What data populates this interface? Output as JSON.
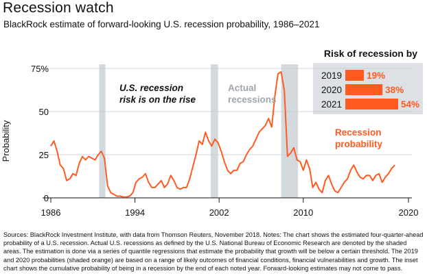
{
  "title": "Recession watch",
  "subtitle": "BlackRock estimate of forward-looking U.S. recession probability, 1986–2021",
  "footnote": "Sources: BlackRock Investment Institute, with data from Thomson Reuters, November 2018. Notes: The chart shows the estimated four-quarter-ahead probability of a U.S. recession.  Actual U.S. recessions as defined by the U.S. National Bureau of Economic Research are denoted by the shaded areas. The estimation is done via a series of quantile regressions that estimate the probability that growth will be below a certain threshold. The 2019 and 2020 probabilities (shaded orange) are based on a range of likely outcomes of financial conditions, financial vulnerabilities and growth. The inset chart shows the cumulative probability of being in a recession by the end of each noted year. Forward-looking estimates may not come to pass.",
  "annotations": {
    "risk_line1": "U.S. recession",
    "risk_line2": "risk is on the rise",
    "actual_line1": "Actual",
    "actual_line2": "recessions",
    "series_line1": "Recession",
    "series_line2": "probability"
  },
  "colors": {
    "series": "#ff5a1f",
    "recession": "#d4d9de",
    "inset_bg": "#dde1e5",
    "axis": "#111111"
  },
  "chart_data": [
    {
      "type": "line",
      "ylabel": "Probability",
      "ylim": [
        0,
        80
      ],
      "xlim": [
        1986,
        2021
      ],
      "x_ticks": [
        1986,
        1994,
        2002,
        2010,
        2020
      ],
      "x_tick_labels": [
        "1986",
        "1994",
        "2002",
        "2010",
        "2020"
      ],
      "y_ticks": [
        0,
        25,
        50,
        75
      ],
      "y_tick_labels": [
        "0",
        "25",
        "50",
        "75%"
      ],
      "recessions": [
        [
          1990.6,
          1991.2
        ],
        [
          2001.2,
          2001.9
        ],
        [
          2007.9,
          2009.5
        ]
      ],
      "series": [
        {
          "name": "Recession probability",
          "x": [
            1986.0,
            1986.3,
            1986.6,
            1986.9,
            1987.2,
            1987.5,
            1987.8,
            1988.1,
            1988.4,
            1988.7,
            1989.0,
            1989.3,
            1989.6,
            1989.9,
            1990.2,
            1990.5,
            1990.8,
            1991.1,
            1991.4,
            1991.7,
            1992.0,
            1992.3,
            1992.6,
            1992.9,
            1993.2,
            1993.5,
            1993.8,
            1994.1,
            1994.4,
            1994.7,
            1995.0,
            1995.3,
            1995.6,
            1995.9,
            1996.2,
            1996.5,
            1996.8,
            1997.1,
            1997.4,
            1997.7,
            1998.0,
            1998.3,
            1998.6,
            1998.9,
            1999.2,
            1999.5,
            1999.8,
            2000.1,
            2000.4,
            2000.7,
            2001.0,
            2001.3,
            2001.6,
            2001.9,
            2002.2,
            2002.5,
            2002.8,
            2003.1,
            2003.4,
            2003.7,
            2004.0,
            2004.3,
            2004.6,
            2004.9,
            2005.2,
            2005.5,
            2005.8,
            2006.1,
            2006.4,
            2006.7,
            2007.0,
            2007.3,
            2007.6,
            2007.9,
            2008.2,
            2008.5,
            2008.8,
            2009.1,
            2009.4,
            2009.7,
            2010.0,
            2010.3,
            2010.6,
            2010.9,
            2011.2,
            2011.5,
            2011.8,
            2012.1,
            2012.4,
            2012.7,
            2013.0,
            2013.3,
            2013.6,
            2013.9,
            2014.2,
            2014.5,
            2014.8,
            2015.1,
            2015.4,
            2015.7,
            2016.0,
            2016.3,
            2016.6,
            2016.9,
            2017.2,
            2017.5,
            2017.8,
            2018.1,
            2018.4,
            2018.7
          ],
          "values": [
            30,
            33,
            27,
            19,
            17,
            10,
            11,
            14,
            13,
            20,
            24,
            22,
            24,
            23,
            22,
            25,
            27,
            23,
            7,
            3,
            2,
            1,
            1,
            0.5,
            0.5,
            1,
            3,
            9,
            11,
            12,
            14,
            9,
            6,
            6,
            8,
            10,
            6,
            8,
            13,
            10,
            6,
            5,
            6,
            6,
            11,
            18,
            25,
            33,
            31,
            38,
            33,
            30,
            34,
            32,
            27,
            21,
            16,
            14,
            16,
            16,
            20,
            21,
            25,
            28,
            30,
            34,
            38,
            40,
            42,
            46,
            41,
            59,
            72,
            73,
            62,
            24,
            26,
            29,
            22,
            21,
            16,
            22,
            17,
            6,
            9,
            5,
            3,
            10,
            13,
            8,
            4,
            3,
            6,
            9,
            11,
            16,
            19,
            15,
            12,
            11,
            13,
            13,
            10,
            13,
            14,
            9,
            12,
            14,
            17,
            19
          ]
        }
      ]
    },
    {
      "type": "bar",
      "title": "Risk of recession by",
      "categories": [
        "2019",
        "2020",
        "2021"
      ],
      "values": [
        19,
        38,
        54
      ],
      "value_labels": [
        "19%",
        "38%",
        "54%"
      ]
    }
  ]
}
